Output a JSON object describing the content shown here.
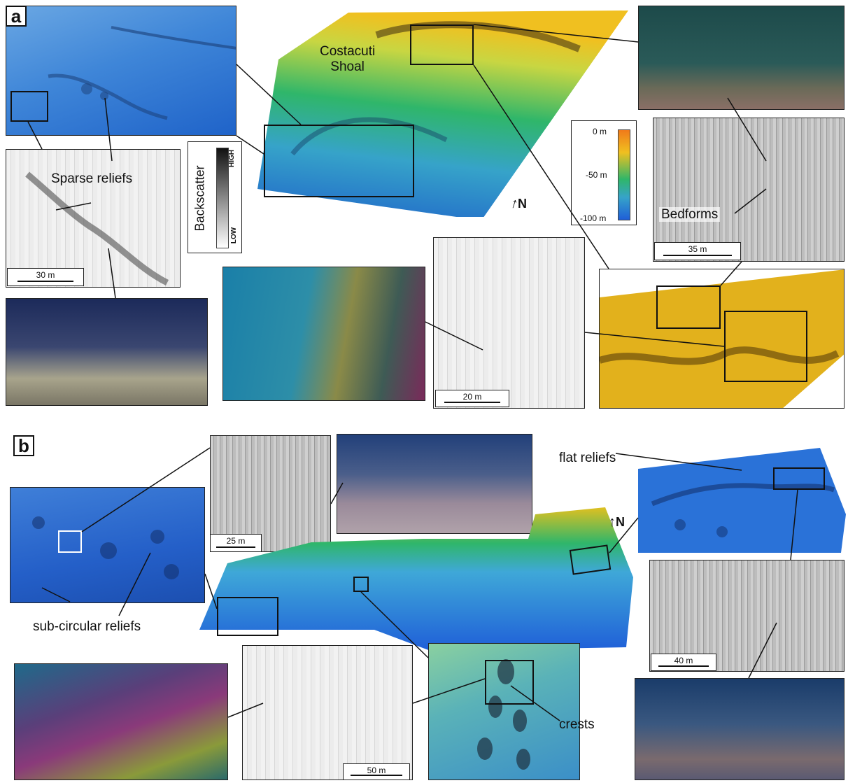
{
  "panels": {
    "a": {
      "letter": "a",
      "labels": {
        "shoal": "Costacuti\nShoal",
        "sparse": "Sparse reliefs",
        "bedforms": "Bedforms"
      },
      "scalebars": [
        "30 m",
        "20 m",
        "35 m"
      ],
      "north": "N",
      "backscatter_legend": {
        "title": "Backscatter",
        "high": "HIGH",
        "low": "LOW"
      },
      "depth_legend": {
        "ticks": [
          "0 m",
          "-50 m",
          "-100 m"
        ]
      }
    },
    "b": {
      "letter": "b",
      "labels": {
        "sub_circular": "sub-circular reliefs",
        "flat": "flat reliefs",
        "crests": "crests"
      },
      "scalebars": [
        "25 m",
        "40 m",
        "50 m"
      ],
      "north": "N"
    }
  },
  "colors": {
    "depth_shallow": "#f07a1a",
    "depth_mid": "#2fb66a",
    "depth_deep": "#1f5fd8",
    "frame": "#111111"
  }
}
